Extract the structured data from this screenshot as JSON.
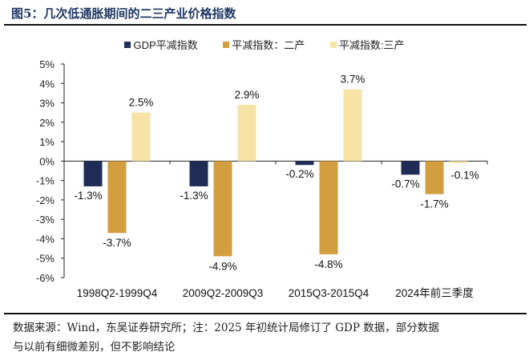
{
  "title": "图5：几次低通胀期间的二三产业价格指数",
  "chart_data": {
    "type": "bar",
    "title": "",
    "categories": [
      "1998Q2-1999Q4",
      "2009Q2-2009Q3",
      "2015Q3-2015Q4",
      "2024年前三季度"
    ],
    "series": [
      {
        "name": "GDP平减指数",
        "color": "#1f2d56",
        "values": [
          -1.3,
          -1.3,
          -0.2,
          -0.7
        ],
        "labels": [
          "-1.3%",
          "-1.3%",
          "-0.2%",
          "-0.7%"
        ]
      },
      {
        "name": "平减指数：二产",
        "color": "#d39e3f",
        "values": [
          -3.7,
          -4.9,
          -4.8,
          -1.7
        ],
        "labels": [
          "-3.7%",
          "-4.9%",
          "-4.8%",
          "-1.7%"
        ]
      },
      {
        "name": "平减指数:三产",
        "color": "#f7e3a6",
        "values": [
          2.5,
          2.9,
          3.7,
          -0.1
        ],
        "labels": [
          "2.5%",
          "2.9%",
          "3.7%",
          "-0.1%"
        ]
      }
    ],
    "ylim": [
      -6,
      5
    ],
    "yticks": [
      "5%",
      "4%",
      "3%",
      "2%",
      "1%",
      "0%",
      "-1%",
      "-2%",
      "-3%",
      "-4%",
      "-5%",
      "-6%"
    ],
    "grid": false,
    "legend": "top"
  },
  "footnote": {
    "line1": "数据来源：Wind，东吴证券研究所；注：2025 年初统计局修订了 GDP 数据，部分数据",
    "line2": "与以前有细微差别，但不影响结论"
  }
}
